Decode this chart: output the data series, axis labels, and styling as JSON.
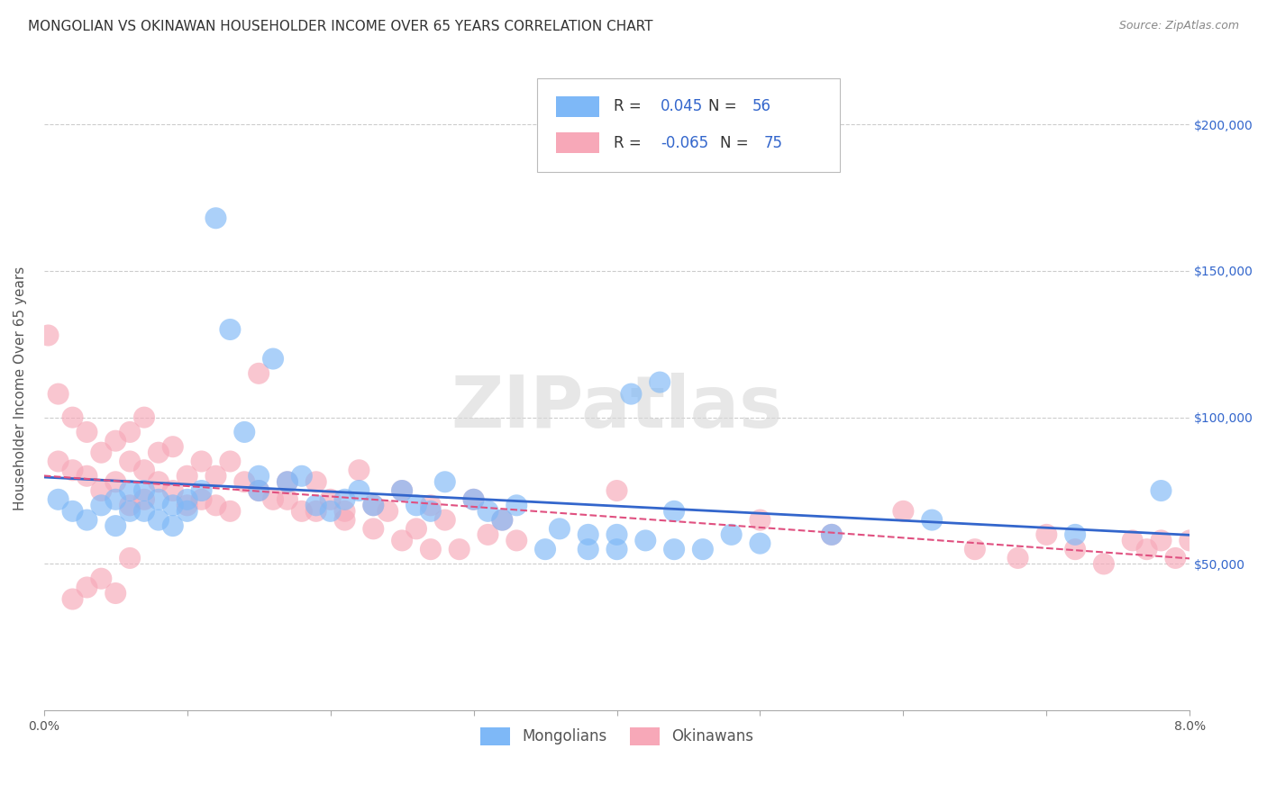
{
  "title": "MONGOLIAN VS OKINAWAN HOUSEHOLDER INCOME OVER 65 YEARS CORRELATION CHART",
  "source": "Source: ZipAtlas.com",
  "ylabel": "Householder Income Over 65 years",
  "xlim": [
    0.0,
    0.08
  ],
  "ylim": [
    0,
    220000
  ],
  "xticks": [
    0.0,
    0.01,
    0.02,
    0.03,
    0.04,
    0.05,
    0.06,
    0.07,
    0.08
  ],
  "ytick_labels": [
    "$50,000",
    "$100,000",
    "$150,000",
    "$200,000"
  ],
  "ytick_positions": [
    50000,
    100000,
    150000,
    200000
  ],
  "mongolian_R": 0.045,
  "mongolian_N": 56,
  "okinawan_R": -0.065,
  "okinawan_N": 75,
  "mongolian_color": "#7EB8F7",
  "okinawan_color": "#F7A8B8",
  "mongolian_line_color": "#3366CC",
  "okinawan_line_color": "#E05080",
  "legend_text_color": "#3366CC",
  "label_color": "#444444",
  "background_color": "#FFFFFF",
  "watermark": "ZIPatlas",
  "mongolian_x": [
    0.001,
    0.002,
    0.003,
    0.004,
    0.005,
    0.005,
    0.006,
    0.006,
    0.007,
    0.007,
    0.008,
    0.008,
    0.009,
    0.009,
    0.01,
    0.01,
    0.011,
    0.012,
    0.013,
    0.014,
    0.015,
    0.015,
    0.016,
    0.017,
    0.018,
    0.019,
    0.02,
    0.021,
    0.022,
    0.023,
    0.025,
    0.026,
    0.027,
    0.028,
    0.03,
    0.031,
    0.032,
    0.033,
    0.035,
    0.036,
    0.038,
    0.04,
    0.041,
    0.043,
    0.044,
    0.046,
    0.048,
    0.05,
    0.038,
    0.04,
    0.042,
    0.044,
    0.055,
    0.062,
    0.072,
    0.078
  ],
  "mongolian_y": [
    72000,
    68000,
    65000,
    70000,
    72000,
    63000,
    68000,
    75000,
    75000,
    68000,
    72000,
    65000,
    70000,
    63000,
    72000,
    68000,
    75000,
    168000,
    130000,
    95000,
    75000,
    80000,
    120000,
    78000,
    80000,
    70000,
    68000,
    72000,
    75000,
    70000,
    75000,
    70000,
    68000,
    78000,
    72000,
    68000,
    65000,
    70000,
    55000,
    62000,
    60000,
    55000,
    108000,
    112000,
    68000,
    55000,
    60000,
    57000,
    55000,
    60000,
    58000,
    55000,
    60000,
    65000,
    60000,
    75000
  ],
  "okinawan_x": [
    0.0003,
    0.001,
    0.001,
    0.002,
    0.002,
    0.003,
    0.003,
    0.004,
    0.004,
    0.005,
    0.005,
    0.006,
    0.006,
    0.006,
    0.007,
    0.007,
    0.007,
    0.008,
    0.008,
    0.009,
    0.009,
    0.01,
    0.01,
    0.011,
    0.011,
    0.012,
    0.012,
    0.013,
    0.013,
    0.014,
    0.015,
    0.015,
    0.016,
    0.017,
    0.018,
    0.019,
    0.02,
    0.021,
    0.022,
    0.023,
    0.024,
    0.025,
    0.026,
    0.027,
    0.028,
    0.029,
    0.03,
    0.031,
    0.032,
    0.033,
    0.017,
    0.019,
    0.021,
    0.023,
    0.025,
    0.027,
    0.04,
    0.05,
    0.055,
    0.06,
    0.065,
    0.068,
    0.07,
    0.072,
    0.074,
    0.076,
    0.077,
    0.078,
    0.079,
    0.08,
    0.002,
    0.003,
    0.004,
    0.005,
    0.006
  ],
  "okinawan_y": [
    128000,
    108000,
    85000,
    100000,
    82000,
    95000,
    80000,
    88000,
    75000,
    92000,
    78000,
    85000,
    70000,
    95000,
    82000,
    72000,
    100000,
    78000,
    88000,
    75000,
    90000,
    80000,
    70000,
    85000,
    72000,
    80000,
    70000,
    85000,
    68000,
    78000,
    115000,
    75000,
    72000,
    78000,
    68000,
    78000,
    72000,
    68000,
    82000,
    70000,
    68000,
    75000,
    62000,
    70000,
    65000,
    55000,
    72000,
    60000,
    65000,
    58000,
    72000,
    68000,
    65000,
    62000,
    58000,
    55000,
    75000,
    65000,
    60000,
    68000,
    55000,
    52000,
    60000,
    55000,
    50000,
    58000,
    55000,
    58000,
    52000,
    58000,
    38000,
    42000,
    45000,
    40000,
    52000
  ],
  "title_fontsize": 11,
  "axis_label_fontsize": 11,
  "tick_fontsize": 10,
  "legend_fontsize": 12
}
